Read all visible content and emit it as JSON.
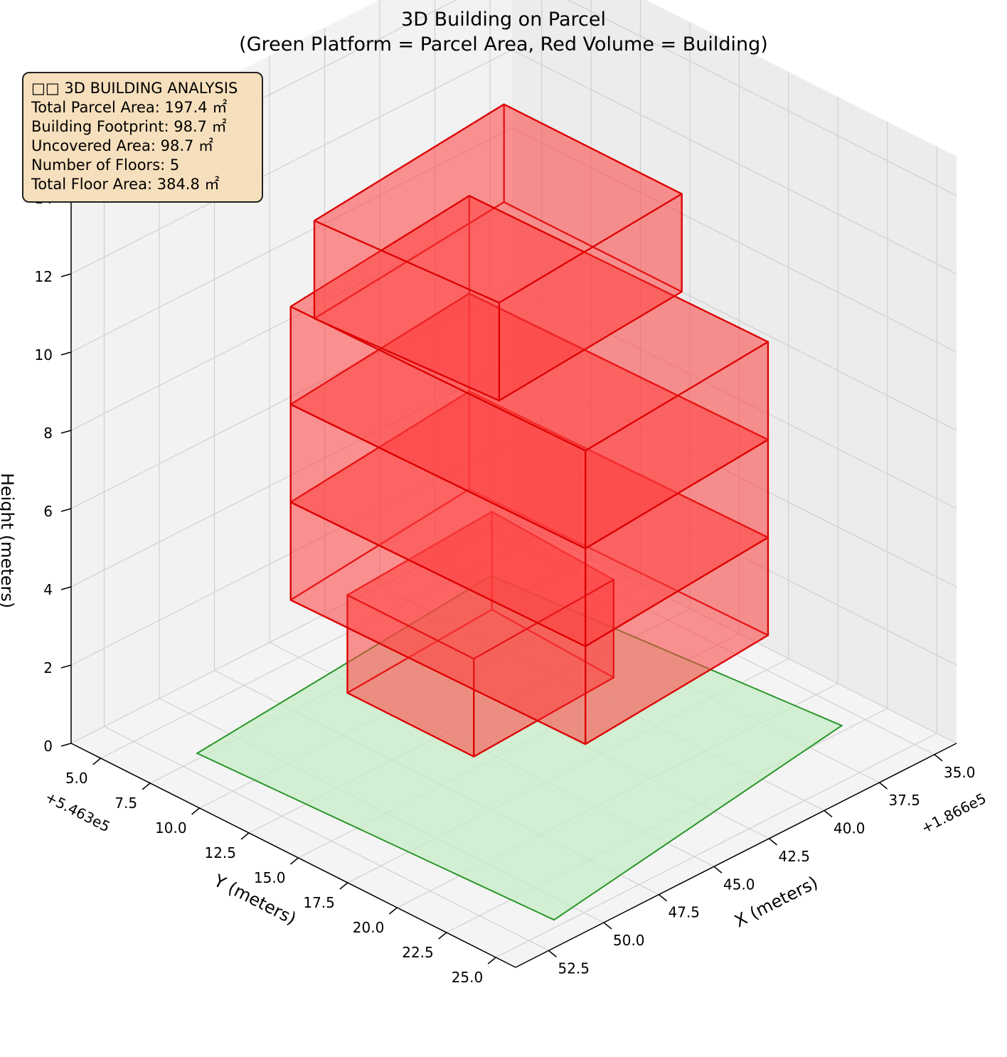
{
  "title_lines": [
    "3D Building on Parcel",
    "(Green Platform = Parcel Area, Red Volume = Building)"
  ],
  "info_box": {
    "heading": "□□ 3D BUILDING ANALYSIS",
    "lines": [
      "Total Parcel Area: 197.4 ㎡",
      "Building Footprint: 98.7 ㎡",
      "Uncovered Area: 98.7 ㎡",
      "Number of Floors: 5",
      "Total Floor Area: 384.8 ㎡"
    ]
  },
  "chart_data": {
    "type": "3d-polygon",
    "title": "3D Building on Parcel\n(Green Platform = Parcel Area, Red Volume = Building)",
    "xlabel": "X (meters)",
    "ylabel": "Y (meters)",
    "zlabel": "Height (meters)",
    "x_offset": "+1.866e5",
    "y_offset": "+5.463e5",
    "x_ticks": [
      "35.0",
      "37.5",
      "40.0",
      "42.5",
      "45.0",
      "47.5",
      "50.0",
      "52.5"
    ],
    "y_ticks": [
      "5.0",
      "7.5",
      "10.0",
      "12.5",
      "15.0",
      "17.5",
      "20.0",
      "22.5",
      "25.0"
    ],
    "z_ticks": [
      "0",
      "2",
      "4",
      "6",
      "8",
      "10",
      "12",
      "14"
    ],
    "xlim": [
      34.0,
      54.0
    ],
    "ylim": [
      3.5,
      26.0
    ],
    "zlim": [
      0,
      15
    ],
    "grid": true,
    "colors": {
      "parcel_fill": "#c8eec8",
      "parcel_edge": "#2a962a",
      "building_fill": "#ff4040",
      "building_edge": "#dd0000"
    },
    "parcel_polygon": [
      [
        37.0,
        5.8
      ],
      [
        35.8,
        22.2
      ],
      [
        51.0,
        24.6
      ],
      [
        51.6,
        7.2
      ]
    ],
    "building_prisms": [
      {
        "footprint": [
          [
            38.5,
            7.5
          ],
          [
            45.5,
            8.0
          ],
          [
            45.5,
            14.4
          ],
          [
            38.8,
            14.0
          ]
        ],
        "z": [
          0,
          2.5
        ]
      },
      {
        "footprint": [
          [
            38.0,
            5.8
          ],
          [
            47.0,
            6.8
          ],
          [
            46.8,
            21.5
          ],
          [
            37.8,
            20.7
          ]
        ],
        "z": [
          2.5,
          5.0
        ]
      },
      {
        "footprint": [
          [
            38.0,
            5.8
          ],
          [
            47.0,
            6.8
          ],
          [
            46.8,
            21.5
          ],
          [
            37.8,
            20.7
          ]
        ],
        "z": [
          5.0,
          7.5
        ]
      },
      {
        "footprint": [
          [
            38.0,
            5.8
          ],
          [
            47.0,
            6.8
          ],
          [
            46.8,
            21.5
          ],
          [
            37.8,
            20.7
          ]
        ],
        "z": [
          7.5,
          10.0
        ]
      },
      {
        "footprint": [
          [
            37.5,
            7.0
          ],
          [
            47.0,
            8.0
          ],
          [
            46.5,
            16.8
          ],
          [
            37.5,
            16.0
          ]
        ],
        "z": [
          10.0,
          12.5
        ]
      }
    ]
  }
}
